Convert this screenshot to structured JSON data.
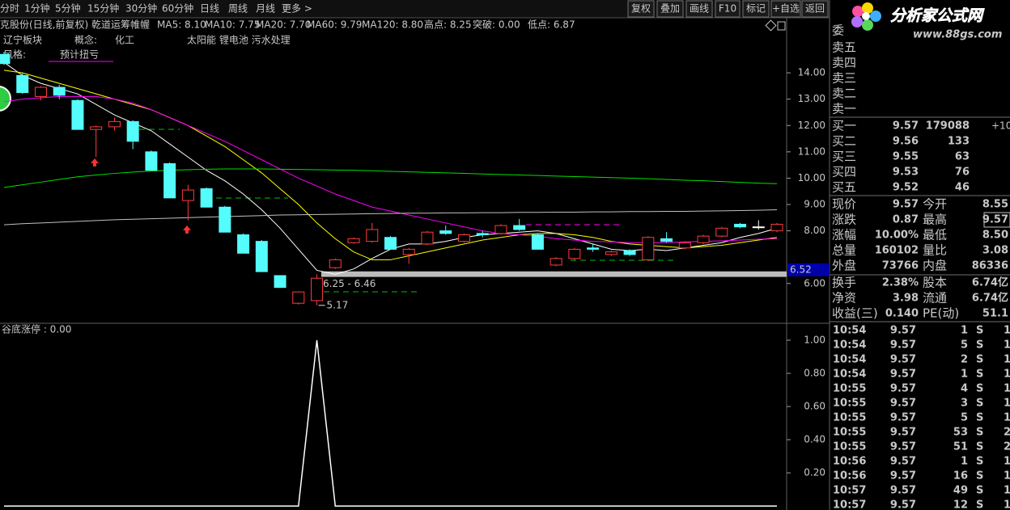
{
  "toolbar": {
    "tabs": [
      "分时",
      "1分钟",
      "5分钟",
      "15分钟",
      "30分钟",
      "60分钟",
      "日线",
      "周线",
      "月线",
      "更多 >"
    ],
    "buttons": [
      "复权",
      "叠加",
      "画线",
      "F10",
      "标记",
      "+自选",
      "返回"
    ]
  },
  "stock_info": {
    "title": "克股份(日线,前复权) 乾道运筹帷幄",
    "indicators": [
      "MA5: 8.10",
      "MA10: 7.75",
      "MA20: 7.70",
      "MA60: 9.79",
      "MA120: 8.80",
      "高点: 8.25",
      "突破: 0.00",
      "低点: 6.87"
    ]
  },
  "tags": {
    "region": "辽宁板块",
    "concept_label": "概念:",
    "concept": "化工",
    "concept_extra": "太阳能 锂电池 污水处理",
    "style_label": "风格:",
    "style": "预计扭亏"
  },
  "price_chart": {
    "type": "candlestick",
    "ylim": [
      4.55,
      16.09
    ],
    "yticks": [
      {
        "value": 14,
        "label": "14.00"
      },
      {
        "value": 13,
        "label": "13.00"
      },
      {
        "value": 12,
        "label": "12.00"
      },
      {
        "value": 11,
        "label": "11.00"
      },
      {
        "value": 10,
        "label": "10.00"
      },
      {
        "value": 9,
        "label": "9.00"
      },
      {
        "value": 8,
        "label": "8.00"
      },
      {
        "value": 6,
        "label": "6.00"
      }
    ],
    "current_price": {
      "value": 6.52,
      "label": "6.52"
    },
    "range": {
      "low": 6.25,
      "high": 6.46,
      "label": "6.25 - 6.46"
    },
    "low_point": {
      "value": 5.17,
      "label": "5.17"
    },
    "up_color": "#ff3c3c",
    "down_color": "#54fcfc",
    "candles": [
      [
        14.7,
        14.8,
        14.3,
        14.35
      ],
      [
        13.9,
        14.0,
        13.2,
        13.25
      ],
      [
        13.1,
        13.5,
        12.95,
        13.45
      ],
      [
        13.45,
        13.55,
        13.0,
        13.15
      ],
      [
        12.95,
        13.0,
        11.85,
        11.85
      ],
      [
        11.85,
        12.0,
        10.8,
        11.95
      ],
      [
        11.95,
        12.3,
        11.8,
        12.15
      ],
      [
        12.15,
        12.2,
        11.1,
        11.4
      ],
      [
        11.0,
        11.05,
        10.3,
        10.3
      ],
      [
        10.55,
        10.6,
        9.25,
        9.25
      ],
      [
        9.15,
        9.75,
        8.4,
        9.55
      ],
      [
        9.6,
        9.65,
        8.9,
        8.9
      ],
      [
        8.9,
        8.95,
        7.95,
        7.95
      ],
      [
        7.85,
        7.9,
        7.15,
        7.15
      ],
      [
        7.6,
        7.65,
        6.45,
        6.45
      ],
      [
        6.3,
        6.3,
        5.85,
        5.85
      ],
      [
        5.25,
        5.7,
        5.2,
        5.68
      ],
      [
        5.35,
        6.35,
        5.17,
        6.2
      ],
      [
        6.6,
        6.95,
        6.55,
        6.9
      ],
      [
        7.55,
        7.75,
        7.5,
        7.7
      ],
      [
        7.6,
        8.3,
        7.55,
        8.05
      ],
      [
        7.75,
        7.8,
        7.3,
        7.3
      ],
      [
        7.1,
        7.35,
        6.75,
        7.3
      ],
      [
        7.5,
        8.0,
        7.45,
        7.95
      ],
      [
        8.0,
        8.2,
        7.85,
        7.9
      ],
      [
        7.6,
        7.9,
        7.55,
        7.85
      ],
      [
        7.9,
        8.0,
        7.75,
        7.85
      ],
      [
        7.9,
        8.25,
        7.85,
        8.2
      ],
      [
        8.2,
        8.45,
        8.0,
        8.05
      ],
      [
        7.85,
        7.9,
        7.3,
        7.3
      ],
      [
        6.7,
        7.0,
        6.65,
        6.95
      ],
      [
        6.95,
        7.35,
        6.9,
        7.3
      ],
      [
        7.35,
        7.5,
        7.2,
        7.3
      ],
      [
        7.1,
        7.25,
        7.05,
        7.2
      ],
      [
        7.25,
        7.3,
        7.05,
        7.1
      ],
      [
        6.9,
        7.8,
        6.85,
        7.75
      ],
      [
        7.7,
        7.95,
        7.55,
        7.6
      ],
      [
        7.35,
        7.6,
        7.3,
        7.55
      ],
      [
        7.55,
        7.85,
        7.5,
        7.8
      ],
      [
        7.8,
        8.15,
        7.75,
        8.1
      ],
      [
        8.25,
        8.3,
        8.1,
        8.15
      ],
      [
        8.15,
        8.4,
        8.05,
        8.15
      ],
      [
        8.0,
        8.3,
        7.95,
        8.25
      ]
    ],
    "series": [
      {
        "name": "MA5",
        "color": "#ffffff",
        "values": [
          14.4,
          13.9,
          13.6,
          13.4,
          13.2,
          12.8,
          12.4,
          12.1,
          11.8,
          11.3,
          10.8,
          10.3,
          9.9,
          9.4,
          8.8,
          8.1,
          7.3,
          6.5,
          6.35,
          6.55,
          6.95,
          7.3,
          7.5,
          7.5,
          7.6,
          7.75,
          7.85,
          7.9,
          7.95,
          8.0,
          7.9,
          7.7,
          7.5,
          7.3,
          7.25,
          7.3,
          7.25,
          7.35,
          7.45,
          7.55,
          7.75,
          7.9,
          8.1
        ]
      },
      {
        "name": "MA10",
        "color": "#ffff00",
        "values": [
          14.1,
          14.0,
          13.8,
          13.6,
          13.4,
          13.2,
          13.0,
          12.8,
          12.6,
          12.3,
          12.0,
          11.6,
          11.2,
          10.7,
          10.2,
          9.6,
          9.0,
          8.3,
          7.7,
          7.2,
          6.9,
          6.9,
          7.05,
          7.2,
          7.35,
          7.5,
          7.65,
          7.75,
          7.85,
          7.9,
          7.9,
          7.85,
          7.75,
          7.6,
          7.5,
          7.45,
          7.4,
          7.35,
          7.4,
          7.45,
          7.55,
          7.65,
          7.75
        ]
      },
      {
        "name": "MA20",
        "color": "#ff00ff",
        "values": [
          12.9,
          13.0,
          13.05,
          13.1,
          13.1,
          13.1,
          13.0,
          12.85,
          12.6,
          12.3,
          12.0,
          11.7,
          11.4,
          11.05,
          10.7,
          10.35,
          10.0,
          9.7,
          9.4,
          9.15,
          8.9,
          8.75,
          8.6,
          8.45,
          8.3,
          8.15,
          8.0,
          7.9,
          7.85,
          7.8,
          7.7,
          7.65,
          7.6,
          7.58,
          7.55,
          7.55,
          7.55,
          7.58,
          7.6,
          7.62,
          7.65,
          7.68,
          7.7
        ]
      },
      {
        "name": "MA60",
        "color": "#00e000",
        "values": [
          9.65,
          9.75,
          9.85,
          9.95,
          10.05,
          10.12,
          10.18,
          10.23,
          10.27,
          10.3,
          10.32,
          10.34,
          10.35,
          10.35,
          10.35,
          10.34,
          10.33,
          10.32,
          10.31,
          10.3,
          10.28,
          10.26,
          10.24,
          10.22,
          10.2,
          10.18,
          10.16,
          10.14,
          10.12,
          10.1,
          10.08,
          10.06,
          10.04,
          10.02,
          10.0,
          9.98,
          9.95,
          9.92,
          9.9,
          9.87,
          9.84,
          9.81,
          9.79
        ]
      },
      {
        "name": "MA120",
        "color": "#c0c0c0",
        "values": [
          8.23,
          8.27,
          8.3,
          8.33,
          8.36,
          8.39,
          8.42,
          8.44,
          8.46,
          8.48,
          8.5,
          8.52,
          8.54,
          8.56,
          8.58,
          8.6,
          8.61,
          8.62,
          8.63,
          8.64,
          8.65,
          8.66,
          8.67,
          8.67,
          8.68,
          8.68,
          8.69,
          8.69,
          8.7,
          8.7,
          8.71,
          8.71,
          8.72,
          8.72,
          8.73,
          8.73,
          8.74,
          8.74,
          8.75,
          8.76,
          8.77,
          8.78,
          8.8
        ]
      }
    ]
  },
  "indicator": {
    "type": "line",
    "title": "谷底涨停 : 0.00",
    "color": "#ffffff",
    "ylim": [
      -0.024,
      1.102
    ],
    "yticks": [
      {
        "value": 1,
        "label": "1.00"
      },
      {
        "value": 0.8,
        "label": "0.80"
      },
      {
        "value": 0.6,
        "label": "0.60"
      },
      {
        "value": 0.4,
        "label": "0.40"
      },
      {
        "value": 0.2,
        "label": "0.20"
      }
    ],
    "values": [
      0,
      0,
      0,
      0,
      0,
      0,
      0,
      0,
      0,
      0,
      0,
      0,
      0,
      0,
      0,
      0,
      0,
      1,
      0,
      0,
      0,
      0,
      0,
      0,
      0,
      0,
      0,
      0,
      0,
      0,
      0,
      0,
      0,
      0,
      0,
      0,
      0,
      0,
      0,
      0,
      0,
      0,
      0
    ]
  },
  "logo": {
    "name": "分析家公式网",
    "url": "www.88gs.com"
  },
  "order_book": {
    "header": "委",
    "asks": [
      "卖五",
      "卖四",
      "卖三",
      "卖二",
      "卖一"
    ],
    "bids": [
      [
        "买一",
        "9.57",
        "179088",
        "+10"
      ],
      [
        "买二",
        "9.56",
        "133"
      ],
      [
        "买三",
        "9.55",
        "63"
      ],
      [
        "买四",
        "9.53",
        "76"
      ],
      [
        "买五",
        "9.52",
        "46"
      ]
    ]
  },
  "stats": [
    [
      "现价",
      "9.57",
      "今开",
      "8.55"
    ],
    [
      "涨跌",
      "0.87",
      "最高",
      "9.57"
    ],
    [
      "涨幅",
      "10.00%",
      "最低",
      "8.50"
    ],
    [
      "总量",
      "160102",
      "量比",
      "3.08"
    ],
    [
      "外盘",
      "73766",
      "内盘",
      "86336"
    ]
  ],
  "stats2": [
    [
      "换手",
      "2.38%",
      "股本",
      "6.74亿"
    ],
    [
      "净资",
      "3.98",
      "流通",
      "6.74亿"
    ],
    [
      "收益(三)",
      "0.140",
      "PE(动)",
      "51.1"
    ]
  ],
  "trades": [
    [
      "10:54",
      "9.57",
      "1",
      "S",
      "1"
    ],
    [
      "10:54",
      "9.57",
      "5",
      "S",
      "1"
    ],
    [
      "10:54",
      "9.57",
      "2",
      "S",
      "1"
    ],
    [
      "10:54",
      "9.57",
      "1",
      "S",
      "1"
    ],
    [
      "10:55",
      "9.57",
      "4",
      "S",
      "1"
    ],
    [
      "10:55",
      "9.57",
      "3",
      "S",
      "1"
    ],
    [
      "10:55",
      "9.57",
      "5",
      "S",
      "1"
    ],
    [
      "10:55",
      "9.57",
      "53",
      "S",
      "2"
    ],
    [
      "10:55",
      "9.57",
      "51",
      "S",
      "2"
    ],
    [
      "10:56",
      "9.57",
      "1",
      "S",
      "1"
    ],
    [
      "10:56",
      "9.57",
      "16",
      "S",
      "1"
    ],
    [
      "10:57",
      "9.57",
      "49",
      "S",
      "1"
    ],
    [
      "10:57",
      "9.57",
      "12",
      "S",
      "1"
    ]
  ]
}
